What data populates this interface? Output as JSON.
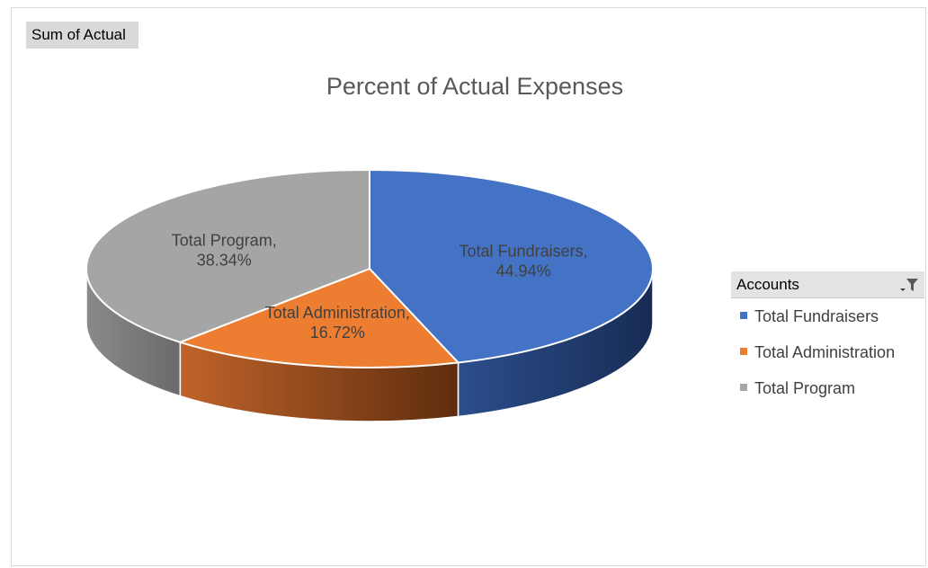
{
  "field_button": {
    "label": "Sum of Actual"
  },
  "chart_data": {
    "type": "pie",
    "title": "Percent of Actual Expenses",
    "three_d": true,
    "slices": [
      {
        "label": "Total Fundraisers",
        "percent": "44.94%",
        "value": 44.94,
        "color": "#4472c4"
      },
      {
        "label": "Total Administration",
        "percent": "16.72%",
        "value": 16.72,
        "color": "#ed7d31"
      },
      {
        "label": "Total Program",
        "percent": "38.34%",
        "value": 38.34,
        "color": "#a5a5a5"
      }
    ],
    "legend": {
      "title": "Accounts",
      "placement": "right",
      "items": [
        "Total Fundraisers",
        "Total Administration",
        "Total Program"
      ]
    }
  },
  "icons": {
    "legend_filter": "filter-dropdown-icon"
  }
}
